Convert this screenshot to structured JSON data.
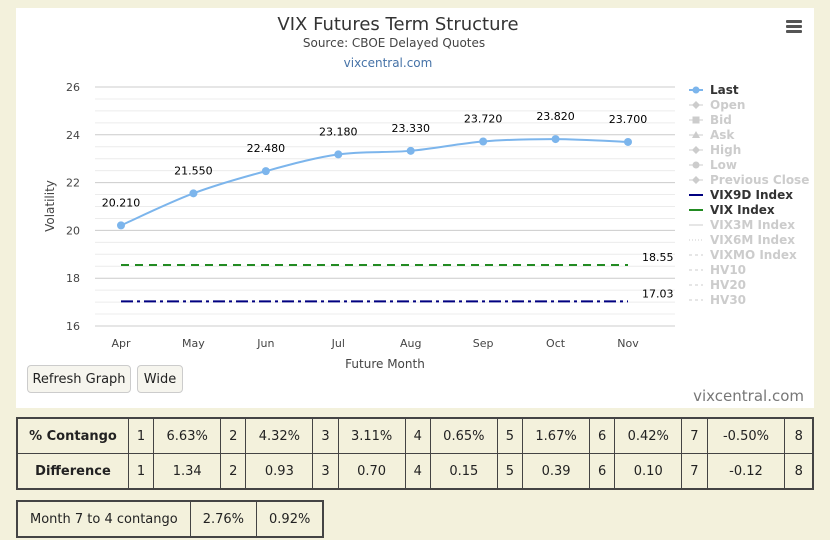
{
  "chart_data": {
    "type": "line",
    "title": "VIX Futures Term Structure",
    "subtitle": "Source: CBOE Delayed Quotes",
    "credit": "vixcentral.com",
    "xlabel": "Future Month",
    "ylabel": "Volatility",
    "categories": [
      "Apr",
      "May",
      "Jun",
      "Jul",
      "Aug",
      "Sep",
      "Oct",
      "Nov"
    ],
    "ylim": [
      16,
      26
    ],
    "yticks": [
      16,
      18,
      20,
      22,
      24,
      26
    ],
    "grid": true,
    "legend_position": "right",
    "series": [
      {
        "name": "Last",
        "values": [
          20.21,
          21.55,
          22.48,
          23.18,
          23.33,
          23.72,
          23.82,
          23.7
        ],
        "labels": [
          "20.210",
          "21.550",
          "22.480",
          "23.180",
          "23.330",
          "23.720",
          "23.820",
          "23.700"
        ],
        "color": "#7cb5ec",
        "style": "solid",
        "markers": true
      },
      {
        "name": "VIX9D Index",
        "value": 17.03,
        "label": "17.03",
        "color": "#000080",
        "style": "dashdot"
      },
      {
        "name": "VIX Index",
        "value": 18.55,
        "label": "18.55",
        "color": "#228b22",
        "style": "dashed"
      }
    ],
    "legend": [
      {
        "name": "Last",
        "active": true,
        "symbol": "circle-line",
        "color": "#7cb5ec"
      },
      {
        "name": "Open",
        "active": false,
        "symbol": "diamond"
      },
      {
        "name": "Bid",
        "active": false,
        "symbol": "square"
      },
      {
        "name": "Ask",
        "active": false,
        "symbol": "triangle"
      },
      {
        "name": "High",
        "active": false,
        "symbol": "diamond"
      },
      {
        "name": "Low",
        "active": false,
        "symbol": "circle"
      },
      {
        "name": "Previous Close",
        "active": false,
        "symbol": "diamond"
      },
      {
        "name": "VIX9D Index",
        "active": true,
        "symbol": "line",
        "color": "#000080"
      },
      {
        "name": "VIX Index",
        "active": true,
        "symbol": "line",
        "color": "#228b22"
      },
      {
        "name": "VIX3M Index",
        "active": false,
        "symbol": "line"
      },
      {
        "name": "VIX6M Index",
        "active": false,
        "symbol": "dotted"
      },
      {
        "name": "VIXMO Index",
        "active": false,
        "symbol": "dashed"
      },
      {
        "name": "HV10",
        "active": false,
        "symbol": "dashed"
      },
      {
        "name": "HV20",
        "active": false,
        "symbol": "dashed"
      },
      {
        "name": "HV30",
        "active": false,
        "symbol": "dashed"
      }
    ]
  },
  "buttons": {
    "refresh": "Refresh Graph",
    "wide": "Wide"
  },
  "watermark": "vixcentral.com",
  "contango_table": {
    "rows": [
      {
        "label": "% Contango",
        "cells": [
          "1",
          "6.63%",
          "2",
          "4.32%",
          "3",
          "3.11%",
          "4",
          "0.65%",
          "5",
          "1.67%",
          "6",
          "0.42%",
          "7",
          "-0.50%",
          "8"
        ]
      },
      {
        "label": "Difference",
        "cells": [
          "1",
          "1.34",
          "2",
          "0.93",
          "3",
          "0.70",
          "4",
          "0.15",
          "5",
          "0.39",
          "6",
          "0.10",
          "7",
          "-0.12",
          "8"
        ]
      }
    ]
  },
  "month_table": {
    "label": "Month 7 to 4 contango",
    "values": [
      "2.76%",
      "0.92%"
    ]
  }
}
